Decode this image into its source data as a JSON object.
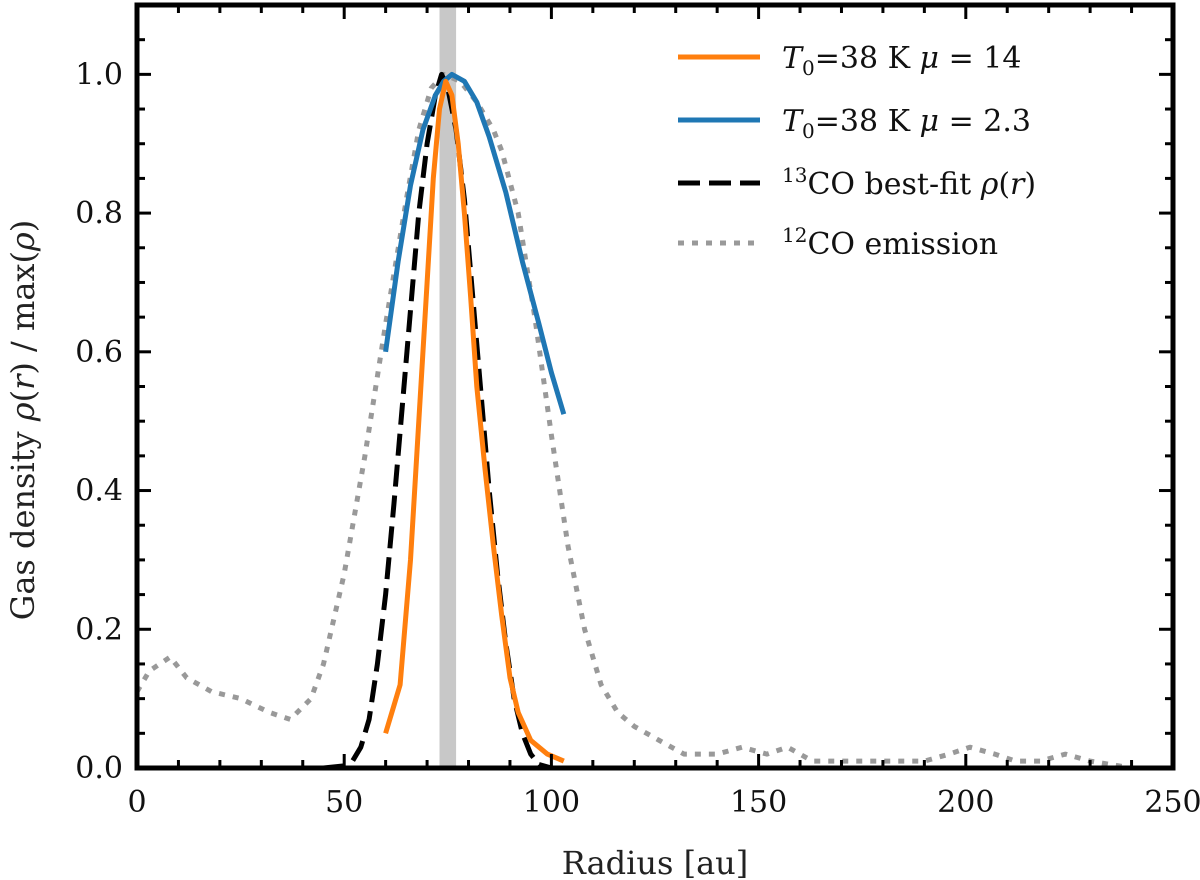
{
  "chart_data": {
    "type": "line",
    "title": "",
    "xlabel": "Radius [au]",
    "ylabel": "Gas density ρ(r) / max(ρ)",
    "xlim": [
      0,
      250
    ],
    "ylim": [
      0,
      1.1
    ],
    "x_ticks": [
      0,
      50,
      100,
      150,
      200,
      250
    ],
    "x_tick_labels": [
      "0",
      "50",
      "100",
      "150",
      "200",
      "250"
    ],
    "y_ticks": [
      0.0,
      0.2,
      0.4,
      0.6,
      0.8,
      1.0
    ],
    "y_tick_labels": [
      "0.0",
      "0.2",
      "0.4",
      "0.6",
      "0.8",
      "1.0"
    ],
    "grid": false,
    "legend_position": "top-right",
    "shaded_band": {
      "x_range": [
        73,
        77
      ],
      "color": "#c8c8c8"
    },
    "series": [
      {
        "name": "T0=38 K μ = 14",
        "legend": {
          "var": "T",
          "sub": "0",
          "rest": "=38 K ",
          "mu": "μ",
          "eq": " = 14"
        },
        "color": "#ff7f0e",
        "style": "solid",
        "width": 5,
        "points": [
          [
            60,
            0.05
          ],
          [
            62,
            0.09
          ],
          [
            63.5,
            0.12
          ],
          [
            66,
            0.3
          ],
          [
            68,
            0.5
          ],
          [
            70,
            0.7
          ],
          [
            71.5,
            0.85
          ],
          [
            73,
            0.95
          ],
          [
            74.5,
            0.99
          ],
          [
            76,
            0.97
          ],
          [
            77.5,
            0.9
          ],
          [
            79,
            0.8
          ],
          [
            80.5,
            0.68
          ],
          [
            82,
            0.55
          ],
          [
            84,
            0.43
          ],
          [
            86,
            0.32
          ],
          [
            88,
            0.22
          ],
          [
            90,
            0.13
          ],
          [
            92,
            0.08
          ],
          [
            95,
            0.04
          ],
          [
            99,
            0.02
          ],
          [
            103,
            0.01
          ]
        ]
      },
      {
        "name": "T0=38 K μ = 2.3",
        "legend": {
          "var": "T",
          "sub": "0",
          "rest": "=38 K ",
          "mu": "μ",
          "eq": " = 2.3"
        },
        "color": "#1f77b4",
        "style": "solid",
        "width": 5,
        "points": [
          [
            60,
            0.6
          ],
          [
            63,
            0.73
          ],
          [
            66,
            0.84
          ],
          [
            69,
            0.92
          ],
          [
            72,
            0.97
          ],
          [
            74,
            0.99
          ],
          [
            76,
            1.0
          ],
          [
            79,
            0.99
          ],
          [
            82,
            0.96
          ],
          [
            85,
            0.91
          ],
          [
            89,
            0.83
          ],
          [
            93,
            0.73
          ],
          [
            97,
            0.64
          ],
          [
            100,
            0.57
          ],
          [
            103,
            0.51
          ]
        ]
      },
      {
        "name": "13CO best-fit ρ(r)",
        "legend": {
          "sup": "13",
          "rest": "CO best-fit ",
          "rho": "ρ(r)"
        },
        "color": "#000000",
        "style": "dashed",
        "width": 5,
        "points": [
          [
            45,
            0.0
          ],
          [
            50,
            0.003
          ],
          [
            52,
            0.01
          ],
          [
            54,
            0.03
          ],
          [
            56,
            0.07
          ],
          [
            58,
            0.15
          ],
          [
            60,
            0.25
          ],
          [
            62,
            0.38
          ],
          [
            64,
            0.52
          ],
          [
            66,
            0.66
          ],
          [
            68,
            0.8
          ],
          [
            70,
            0.9
          ],
          [
            72,
            0.97
          ],
          [
            73.5,
            1.0
          ],
          [
            75,
            0.98
          ],
          [
            77,
            0.92
          ],
          [
            79,
            0.82
          ],
          [
            81,
            0.68
          ],
          [
            83,
            0.54
          ],
          [
            85,
            0.4
          ],
          [
            87,
            0.28
          ],
          [
            89,
            0.18
          ],
          [
            91,
            0.1
          ],
          [
            93,
            0.05
          ],
          [
            95,
            0.02
          ],
          [
            97,
            0.005
          ],
          [
            100,
            0.0
          ]
        ]
      },
      {
        "name": "12CO emission",
        "legend": {
          "sup": "12",
          "rest": "CO emission"
        },
        "color": "#999999",
        "style": "dotted",
        "width": 5,
        "points": [
          [
            0,
            0.11
          ],
          [
            3,
            0.14
          ],
          [
            8,
            0.16
          ],
          [
            12,
            0.13
          ],
          [
            18,
            0.11
          ],
          [
            25,
            0.1
          ],
          [
            32,
            0.08
          ],
          [
            37,
            0.07
          ],
          [
            42,
            0.1
          ],
          [
            45,
            0.15
          ],
          [
            50,
            0.28
          ],
          [
            55,
            0.45
          ],
          [
            60,
            0.64
          ],
          [
            65,
            0.82
          ],
          [
            68,
            0.92
          ],
          [
            71,
            0.98
          ],
          [
            74,
            1.0
          ],
          [
            78,
            0.99
          ],
          [
            82,
            0.96
          ],
          [
            86,
            0.92
          ],
          [
            88,
            0.89
          ],
          [
            92,
            0.8
          ],
          [
            96,
            0.65
          ],
          [
            100,
            0.48
          ],
          [
            104,
            0.32
          ],
          [
            108,
            0.2
          ],
          [
            112,
            0.12
          ],
          [
            116,
            0.08
          ],
          [
            120,
            0.06
          ],
          [
            126,
            0.04
          ],
          [
            132,
            0.02
          ],
          [
            140,
            0.02
          ],
          [
            146,
            0.03
          ],
          [
            152,
            0.02
          ],
          [
            157,
            0.03
          ],
          [
            163,
            0.01
          ],
          [
            170,
            0.01
          ],
          [
            180,
            0.01
          ],
          [
            190,
            0.01
          ],
          [
            196,
            0.02
          ],
          [
            201,
            0.03
          ],
          [
            207,
            0.02
          ],
          [
            212,
            0.01
          ],
          [
            218,
            0.01
          ],
          [
            224,
            0.02
          ],
          [
            230,
            0.01
          ],
          [
            240,
            0.0
          ],
          [
            250,
            0.0
          ]
        ]
      }
    ]
  }
}
